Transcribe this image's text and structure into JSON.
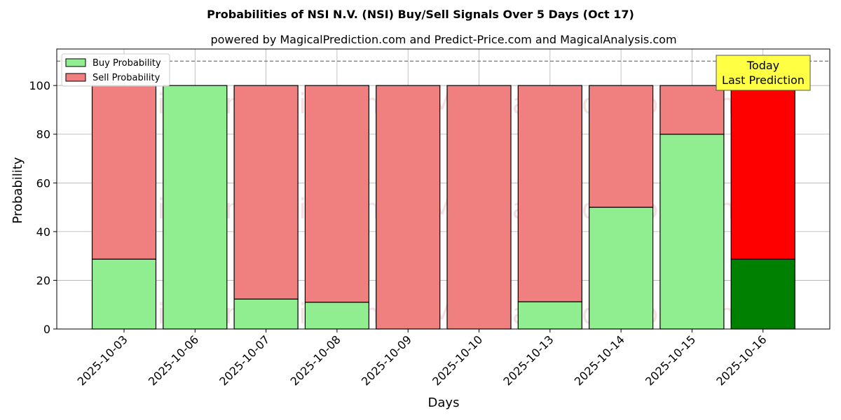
{
  "chart_data": {
    "type": "bar",
    "stacked": true,
    "title": "Probabilities of NSI N.V. (NSI) Buy/Sell Signals Over 5 Days (Oct 17)",
    "subtitle": "powered by MagicalPrediction.com and Predict-Price.com and MagicalAnalysis.com",
    "xlabel": "Days",
    "ylabel": "Probability",
    "ylim": [
      0,
      115
    ],
    "yticks": [
      0,
      20,
      40,
      60,
      80,
      100
    ],
    "reference_line": 110,
    "grid": true,
    "legend_position": "top-left",
    "categories": [
      "2025-10-03",
      "2025-10-06",
      "2025-10-07",
      "2025-10-08",
      "2025-10-09",
      "2025-10-10",
      "2025-10-13",
      "2025-10-14",
      "2025-10-15",
      "2025-10-16"
    ],
    "series": [
      {
        "name": "Buy Probability",
        "color": "#90ee90",
        "highlight_color": "#008000",
        "values": [
          28.7,
          100,
          12.3,
          11.0,
          0,
          0,
          11.2,
          50.0,
          80.0,
          28.7
        ]
      },
      {
        "name": "Sell Probability",
        "color": "#f08080",
        "highlight_color": "#ff0000",
        "values": [
          71.3,
          0,
          87.7,
          89.0,
          100,
          100,
          88.8,
          50.0,
          20.0,
          71.3
        ]
      }
    ],
    "highlight_index": 9,
    "annotation": {
      "line1": "Today",
      "line2": "Last Prediction",
      "background": "#ffff44"
    },
    "watermarks": [
      "MagicalAnalysis.com",
      "MagicalPrediction.com"
    ]
  }
}
